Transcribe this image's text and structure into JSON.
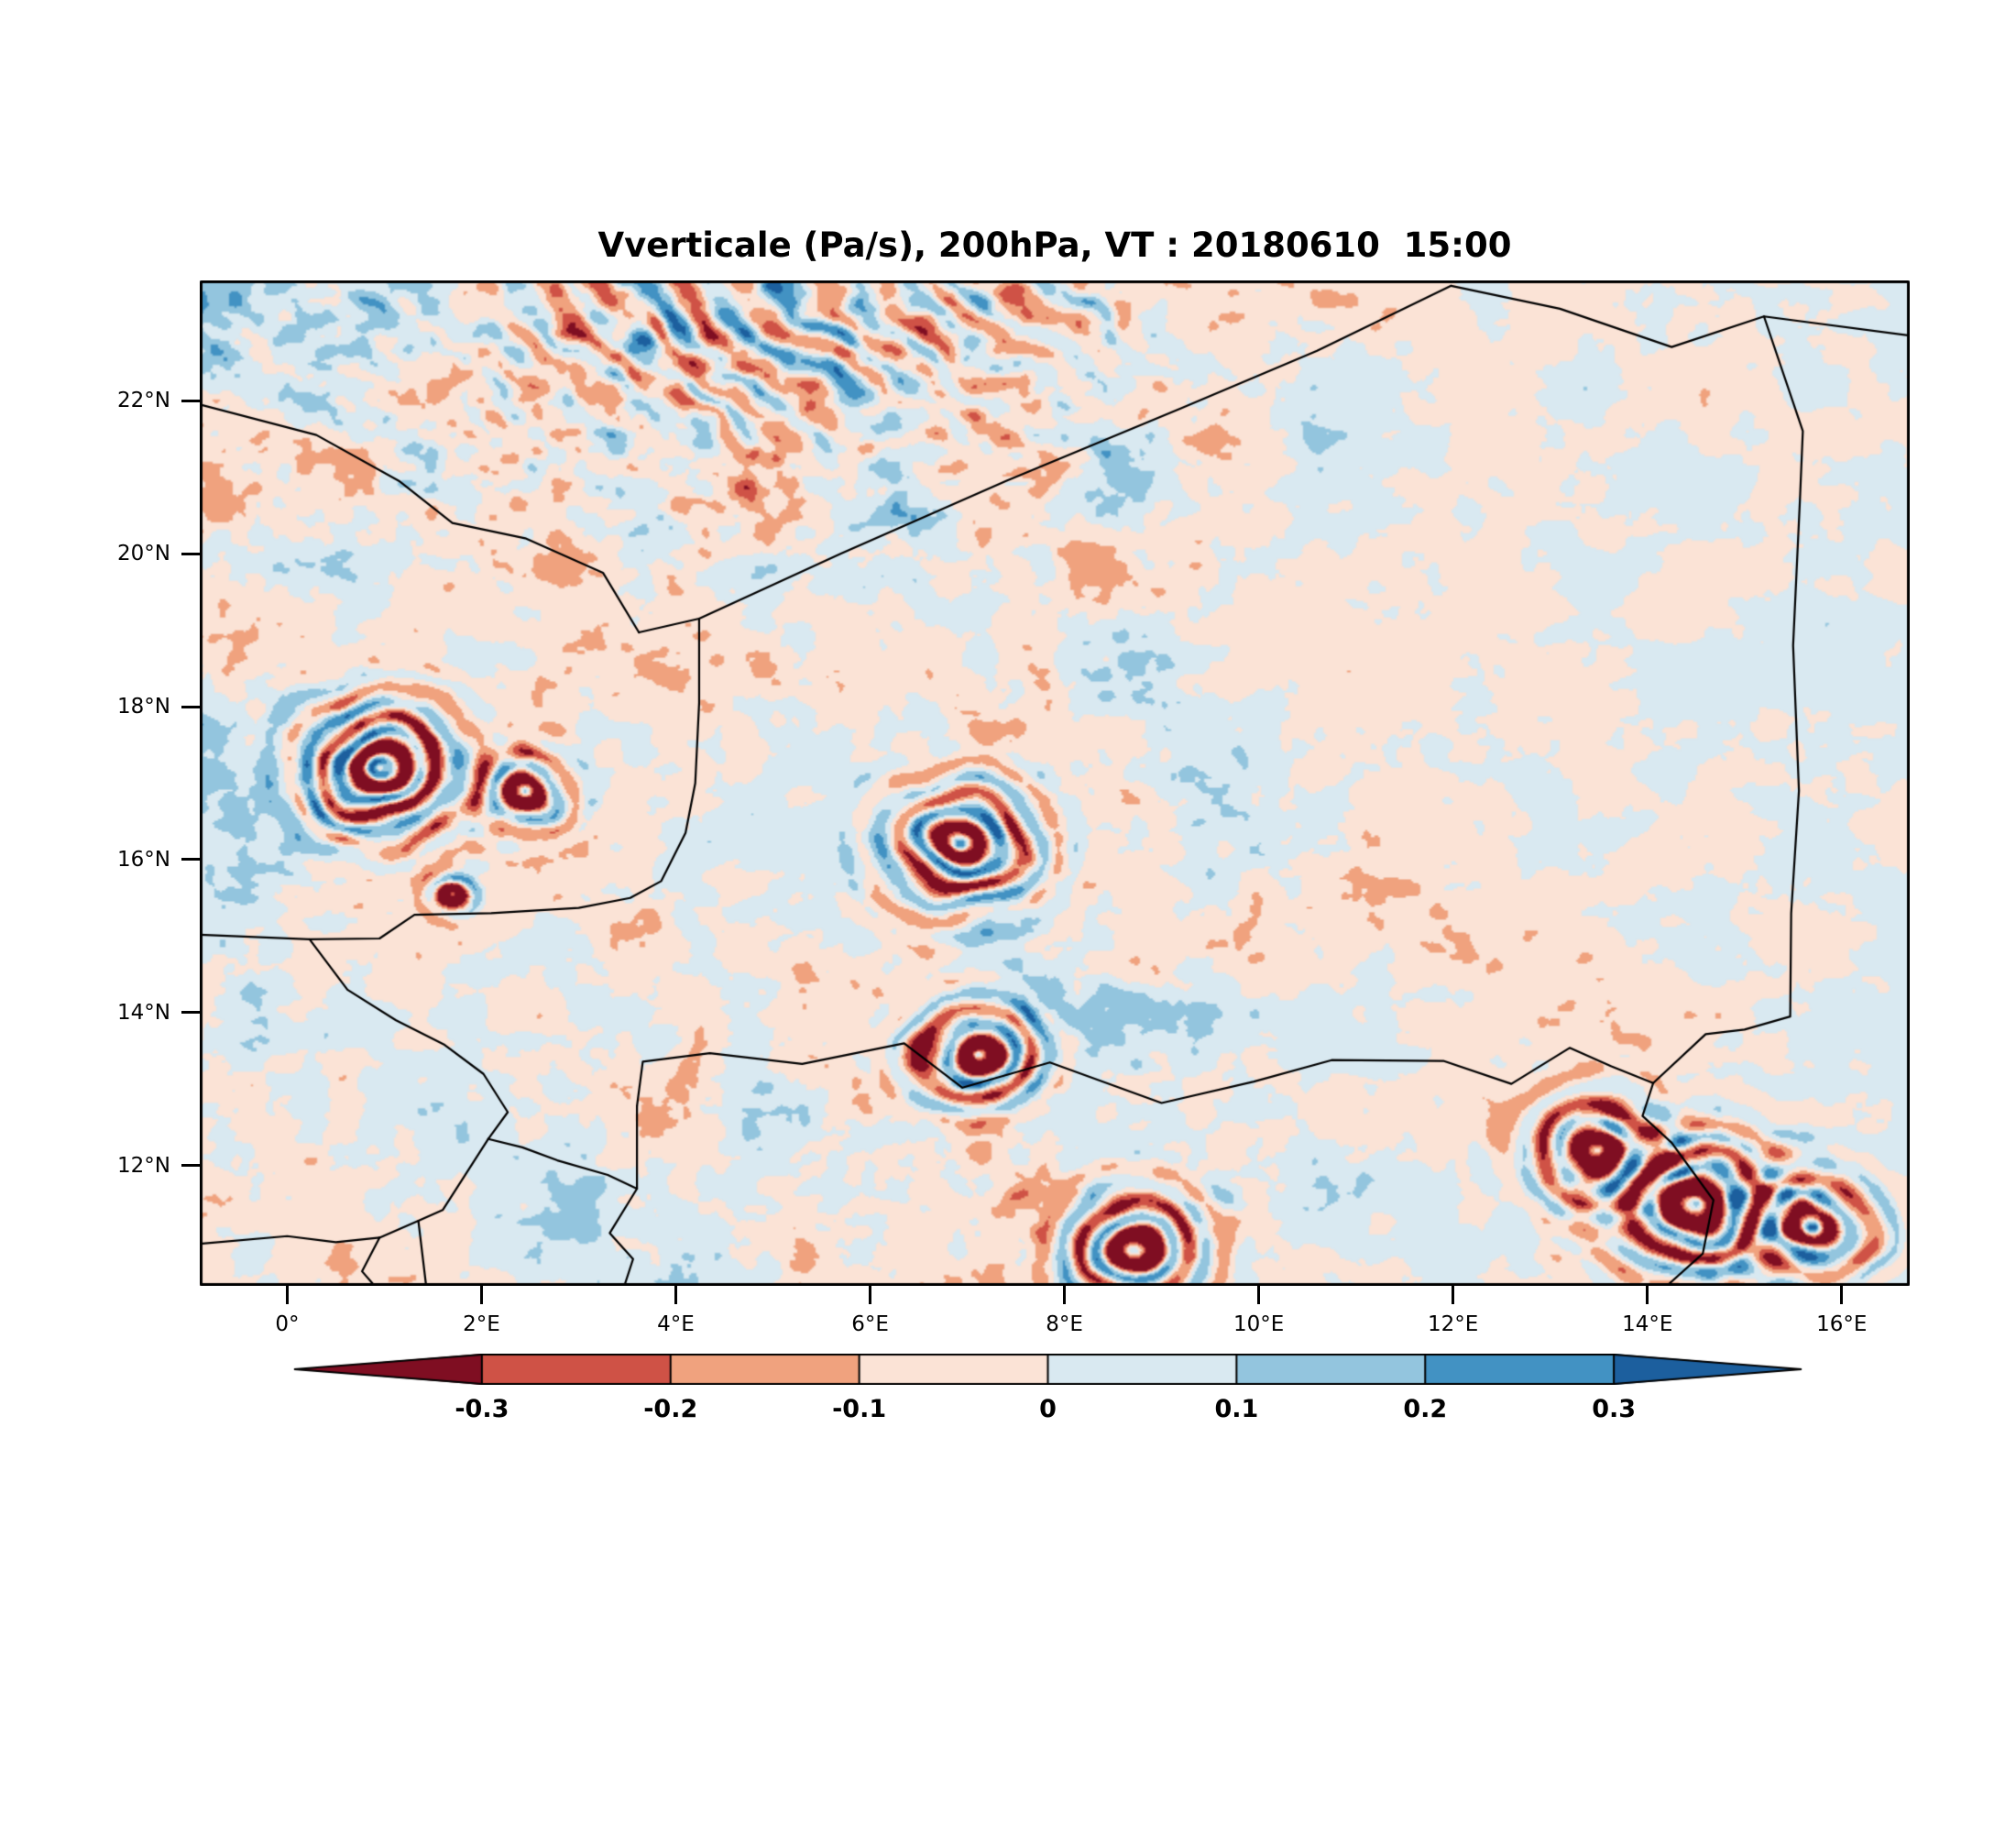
{
  "chart_data": {
    "type": "heatmap",
    "title": "Vverticale (Pa/s), 200hPa, VT : 20180610  15:00",
    "variable": "Vverticale",
    "units": "Pa/s",
    "pressure_level": "200hPa",
    "valid_time": "20180610 15:00",
    "x_axis": {
      "tick_labels": [
        "0°",
        "2°E",
        "4°E",
        "6°E",
        "8°E",
        "10°E",
        "12°E",
        "14°E",
        "16°E"
      ],
      "tick_values": [
        0,
        2,
        4,
        6,
        8,
        10,
        12,
        14,
        16
      ]
    },
    "y_axis": {
      "tick_labels": [
        "22°N",
        "20°N",
        "18°N",
        "16°N",
        "14°N",
        "12°N"
      ],
      "tick_values": [
        22,
        20,
        18,
        16,
        14,
        12
      ]
    },
    "colorbar": {
      "boundary_labels": [
        "-0.3",
        "-0.2",
        "-0.1",
        "0",
        "0.1",
        "0.2",
        "0.3"
      ],
      "boundary_values": [
        -0.3,
        -0.2,
        -0.1,
        0,
        0.1,
        0.2,
        0.3
      ],
      "colors": [
        "#7f0e22",
        "#cf5246",
        "#f0a27e",
        "#fbe3d6",
        "#d9e9f1",
        "#93c5de",
        "#4292c3",
        "#1c5f9e"
      ]
    },
    "map": {
      "lon_range": [
        -0.9,
        16.7
      ],
      "lat_range": [
        10.43,
        23.57
      ],
      "grid": false,
      "borders": [
        [
          [
            -0.9,
            21.95
          ],
          [
            0.3,
            21.55
          ],
          [
            1.15,
            20.95
          ],
          [
            1.7,
            20.4
          ],
          [
            2.45,
            20.2
          ],
          [
            3.25,
            19.75
          ],
          [
            3.62,
            18.97
          ]
        ],
        [
          [
            3.62,
            18.97
          ],
          [
            4.24,
            19.15
          ],
          [
            5.7,
            20.0
          ],
          [
            7.4,
            20.95
          ],
          [
            9.2,
            21.9
          ],
          [
            10.6,
            22.65
          ],
          [
            11.98,
            23.5
          ]
        ],
        [
          [
            11.98,
            23.5
          ],
          [
            13.1,
            23.2
          ],
          [
            14.25,
            22.7
          ],
          [
            15.2,
            23.1
          ],
          [
            16.7,
            22.85
          ]
        ],
        [
          [
            15.2,
            23.1
          ],
          [
            15.6,
            21.6
          ],
          [
            15.57,
            20.7
          ],
          [
            15.5,
            18.8
          ],
          [
            15.56,
            16.9
          ],
          [
            15.48,
            15.3
          ],
          [
            15.47,
            13.95
          ],
          [
            15.0,
            13.78
          ],
          [
            14.6,
            13.72
          ],
          [
            14.06,
            13.08
          ]
        ],
        [
          [
            14.06,
            13.08
          ],
          [
            13.95,
            12.65
          ],
          [
            14.25,
            12.3
          ],
          [
            14.68,
            11.55
          ],
          [
            14.57,
            10.85
          ],
          [
            14.2,
            10.43
          ]
        ],
        [
          [
            3.6,
            12.78
          ],
          [
            3.66,
            13.36
          ],
          [
            4.35,
            13.47
          ],
          [
            5.3,
            13.33
          ],
          [
            6.35,
            13.6
          ],
          [
            6.95,
            13.02
          ],
          [
            7.85,
            13.35
          ],
          [
            9.0,
            12.82
          ],
          [
            9.95,
            13.1
          ],
          [
            10.75,
            13.38
          ],
          [
            11.9,
            13.37
          ],
          [
            12.6,
            13.07
          ],
          [
            13.2,
            13.54
          ],
          [
            13.63,
            13.3
          ],
          [
            14.06,
            13.08
          ]
        ],
        [
          [
            -0.9,
            15.02
          ],
          [
            0.23,
            14.96
          ],
          [
            0.95,
            14.97
          ],
          [
            1.31,
            15.28
          ],
          [
            2.1,
            15.3
          ],
          [
            3.0,
            15.37
          ],
          [
            3.53,
            15.5
          ],
          [
            3.85,
            15.72
          ],
          [
            4.1,
            16.35
          ],
          [
            4.2,
            17.0
          ],
          [
            4.24,
            18.05
          ],
          [
            4.24,
            19.15
          ]
        ],
        [
          [
            0.23,
            14.96
          ],
          [
            0.62,
            14.3
          ],
          [
            1.12,
            13.9
          ],
          [
            1.62,
            13.58
          ],
          [
            2.02,
            13.2
          ],
          [
            2.27,
            12.7
          ],
          [
            2.07,
            12.35
          ]
        ],
        [
          [
            2.07,
            12.35
          ],
          [
            2.42,
            12.24
          ],
          [
            2.78,
            12.07
          ],
          [
            3.3,
            11.88
          ],
          [
            3.6,
            11.7
          ],
          [
            3.6,
            12.78
          ]
        ],
        [
          [
            2.07,
            12.35
          ],
          [
            1.6,
            11.42
          ],
          [
            1.35,
            11.28
          ],
          [
            0.95,
            11.06
          ]
        ],
        [
          [
            1.35,
            11.28
          ],
          [
            1.43,
            10.43
          ]
        ],
        [
          [
            0.95,
            11.06
          ],
          [
            0.77,
            10.62
          ],
          [
            0.9,
            10.43
          ]
        ],
        [
          [
            -0.9,
            10.98
          ],
          [
            0.0,
            11.08
          ],
          [
            0.5,
            11.0
          ],
          [
            0.95,
            11.06
          ]
        ],
        [
          [
            3.6,
            11.7
          ],
          [
            3.32,
            11.12
          ],
          [
            3.56,
            10.78
          ],
          [
            3.47,
            10.43
          ]
        ]
      ],
      "storm_features": [
        {
          "lon": 0.95,
          "lat": 17.2,
          "r": 0.95,
          "wl": 0.42,
          "amp": 0.62,
          "core": 0.25
        },
        {
          "lon": 2.45,
          "lat": 16.9,
          "r": 0.55,
          "wl": 0.38,
          "amp": 0.5,
          "core": 0.15
        },
        {
          "lon": 1.7,
          "lat": 15.55,
          "r": 0.28,
          "wl": 0.3,
          "amp": 0.5,
          "core": 0.3
        },
        {
          "lon": 6.93,
          "lat": 16.2,
          "r": 0.85,
          "wl": 0.42,
          "amp": 0.58,
          "core": 0.2
        },
        {
          "lon": 7.1,
          "lat": 13.45,
          "r": 0.7,
          "wl": 0.4,
          "amp": 0.7,
          "core": 0.35
        },
        {
          "lon": 13.5,
          "lat": 12.2,
          "r": 0.8,
          "wl": 0.44,
          "amp": 0.55,
          "core": 0.2
        },
        {
          "lon": 14.5,
          "lat": 11.5,
          "r": 1.0,
          "wl": 0.46,
          "amp": 0.62,
          "core": 0.22
        },
        {
          "lon": 15.7,
          "lat": 11.2,
          "r": 0.8,
          "wl": 0.42,
          "amp": 0.55,
          "core": 0.15
        },
        {
          "lon": 8.7,
          "lat": 10.9,
          "r": 0.8,
          "wl": 0.42,
          "amp": 0.65,
          "core": 0.3
        }
      ]
    }
  }
}
